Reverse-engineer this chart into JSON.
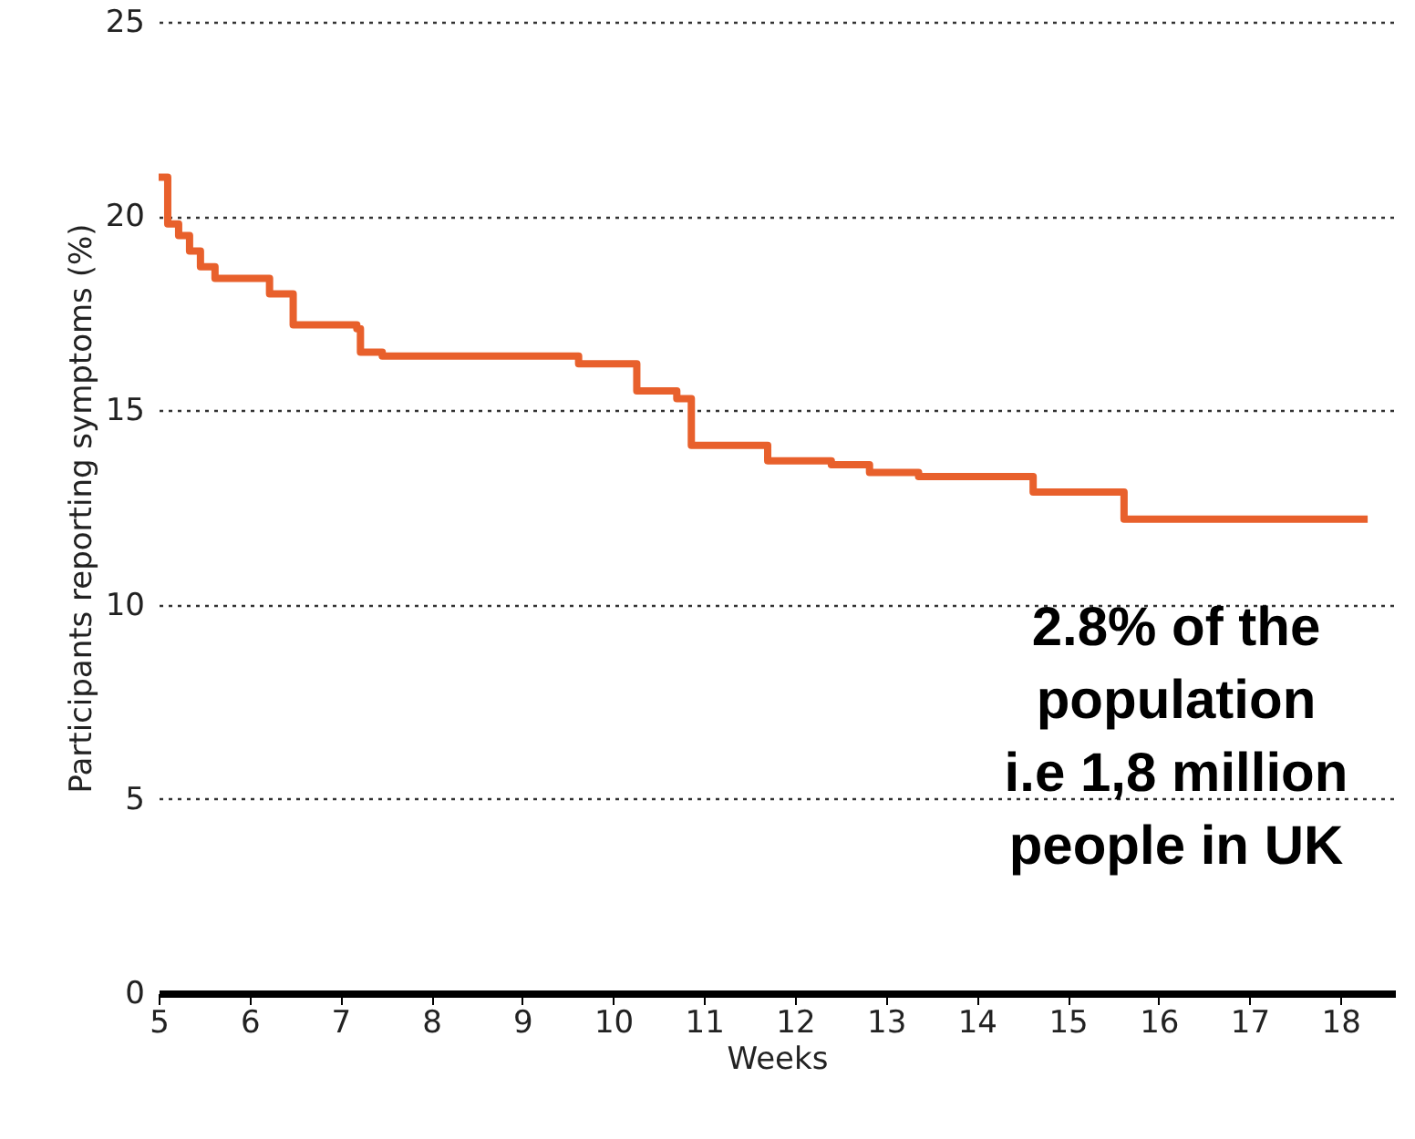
{
  "chart_data": {
    "type": "step",
    "xlabel": "Weeks",
    "ylabel": "Participants reporting symptoms (%)",
    "x": [
      5.0,
      5.1,
      5.22,
      5.34,
      5.46,
      5.62,
      6.22,
      6.48,
      7.18,
      7.22,
      7.46,
      9.62,
      10.26,
      10.7,
      10.86,
      11.7,
      12.4,
      12.82,
      13.36,
      14.62,
      15.62,
      18.3
    ],
    "series": [
      {
        "color": "#e8602c",
        "values": [
          21.0,
          19.8,
          19.5,
          19.1,
          18.7,
          18.4,
          18.0,
          17.2,
          17.1,
          16.5,
          16.4,
          16.2,
          15.5,
          15.3,
          14.1,
          13.7,
          13.6,
          13.4,
          13.3,
          12.9,
          12.2,
          12.2
        ]
      }
    ],
    "xlim": [
      5,
      18.6
    ],
    "xticks": [
      5,
      6,
      7,
      8,
      9,
      10,
      11,
      12,
      13,
      14,
      15,
      16,
      17,
      18
    ],
    "ylim": [
      0,
      25
    ],
    "yticks": [
      0,
      5,
      10,
      15,
      20,
      25
    ],
    "grid": "y",
    "marker": "none",
    "line_style": "solid",
    "annotations": [
      "2.8% of the\npopulation\ni.e 1,8 million\npeople in UK"
    ]
  }
}
